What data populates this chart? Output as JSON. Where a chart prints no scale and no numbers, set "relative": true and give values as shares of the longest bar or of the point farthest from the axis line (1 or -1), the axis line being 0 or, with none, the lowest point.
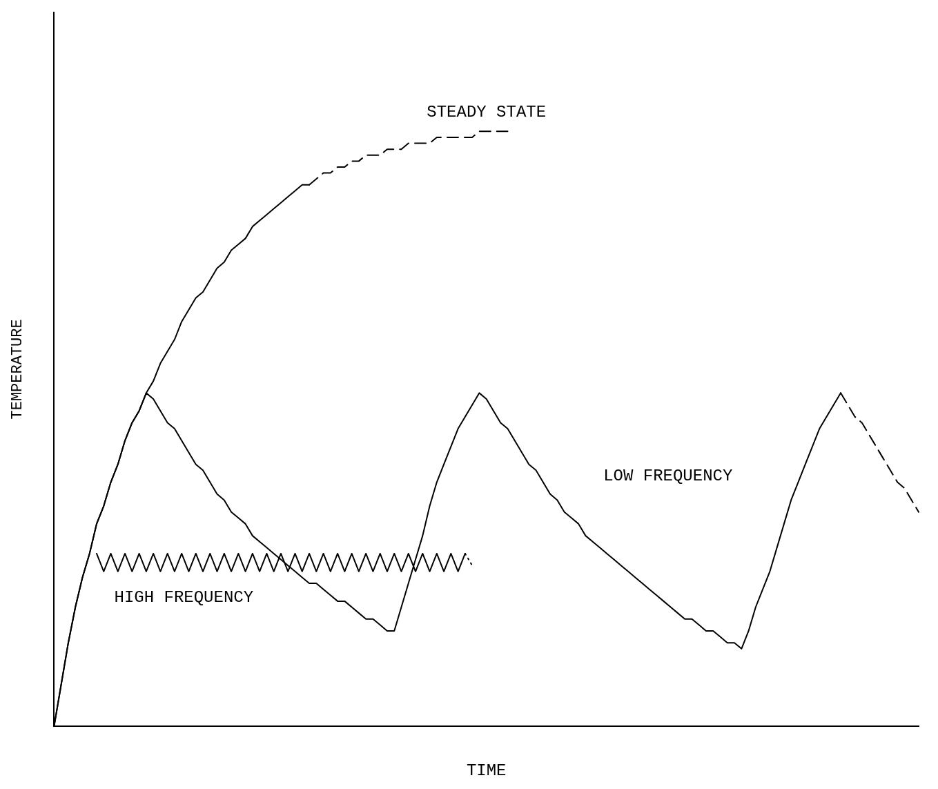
{
  "chart_data": {
    "type": "line",
    "relative": true,
    "xlabel": "TIME",
    "ylabel": "TEMPERATURE",
    "grid": false,
    "legend": false,
    "marker": "none",
    "categories": [
      null,
      null,
      null,
      null,
      null,
      null,
      null,
      null,
      null,
      null,
      null,
      null,
      null,
      null,
      null,
      null,
      null,
      null,
      null,
      null,
      null,
      null,
      null,
      null,
      null,
      null,
      null,
      null,
      null,
      null,
      null,
      null,
      null,
      null,
      null,
      null,
      null,
      null,
      null,
      null,
      null,
      null,
      null,
      null,
      null,
      null,
      null,
      null,
      null,
      null,
      null,
      null,
      null,
      null,
      null,
      null,
      null,
      null,
      null,
      null,
      null,
      null,
      null,
      null,
      null,
      null,
      null,
      null,
      null,
      null,
      null,
      null,
      null,
      null,
      null,
      null,
      null,
      null,
      null,
      null,
      null,
      null,
      null,
      null,
      null,
      null,
      null,
      null,
      null,
      null,
      null,
      null,
      null,
      null,
      null,
      null,
      null,
      null,
      null,
      null,
      null,
      null,
      null,
      null,
      null,
      null,
      null,
      null,
      null,
      null,
      null,
      null,
      null,
      null,
      null,
      null,
      null,
      null,
      null,
      null,
      null,
      null,
      null
    ],
    "series": [
      {
        "color": "#000000",
        "line_style": "solid",
        "values": [
          0,
          0.07,
          0.14,
          0.2,
          0.25,
          0.29,
          0.34,
          0.37,
          0.41,
          0.44,
          0.48,
          0.51,
          0.53,
          0.56,
          0.58,
          0.61,
          0.63,
          0.65,
          0.68,
          0.7,
          0.72,
          0.73,
          0.75,
          0.77,
          0.78,
          0.8,
          0.81,
          0.82,
          0.84,
          0.85,
          0.86,
          0.87,
          0.88,
          0.89,
          0.9,
          0.91,
          0.91,
          null,
          null,
          null,
          null,
          null,
          null,
          null,
          null,
          null,
          null,
          null,
          null,
          null,
          null,
          null,
          null,
          null,
          null,
          null,
          null,
          null,
          null,
          null,
          null,
          null,
          null,
          null,
          null,
          null,
          null,
          null,
          null,
          null,
          null,
          null,
          null,
          null,
          null,
          null,
          null,
          null,
          null,
          null,
          null,
          null,
          null,
          null,
          null,
          null,
          null,
          null,
          null,
          null,
          null,
          null,
          null,
          null,
          null,
          null,
          null,
          null,
          null,
          null,
          null,
          null,
          null,
          null,
          null,
          null,
          null,
          null,
          null,
          null,
          null,
          null,
          null,
          null,
          null,
          null,
          null,
          null,
          null,
          null,
          null,
          null,
          null
        ]
      },
      {
        "name": "STEADY STATE",
        "color": "#000000",
        "line_style": "dashed",
        "values": [
          null,
          null,
          null,
          null,
          null,
          null,
          null,
          null,
          null,
          null,
          null,
          null,
          null,
          null,
          null,
          null,
          null,
          null,
          null,
          null,
          null,
          null,
          null,
          null,
          null,
          null,
          null,
          null,
          null,
          null,
          null,
          null,
          null,
          null,
          null,
          null,
          0.91,
          0.92,
          0.93,
          0.93,
          0.94,
          0.94,
          0.95,
          0.95,
          0.96,
          0.96,
          0.96,
          0.97,
          0.97,
          0.97,
          0.98,
          0.98,
          0.98,
          0.98,
          0.99,
          0.99,
          0.99,
          0.99,
          0.99,
          0.99,
          1.0,
          1.0,
          1.0,
          1.0,
          1.0,
          null,
          null,
          null,
          null,
          null,
          null,
          null,
          null,
          null,
          null,
          null,
          null,
          null,
          null,
          null,
          null,
          null,
          null,
          null,
          null,
          null,
          null,
          null,
          null,
          null,
          null,
          null,
          null,
          null,
          null,
          null,
          null,
          null,
          null,
          null,
          null,
          null,
          null,
          null,
          null,
          null,
          null,
          null,
          null,
          null,
          null,
          null,
          null,
          null,
          null,
          null,
          null,
          null,
          null,
          null,
          null,
          null,
          null
        ]
      },
      {
        "name": "LOW FREQUENCY",
        "color": "#000000",
        "line_style": "solid",
        "values": [
          0,
          0.07,
          0.14,
          0.2,
          0.25,
          0.29,
          0.34,
          0.37,
          0.41,
          0.44,
          0.48,
          0.51,
          0.53,
          0.56,
          0.55,
          0.53,
          0.51,
          0.5,
          0.48,
          0.46,
          0.44,
          0.43,
          0.41,
          0.39,
          0.38,
          0.36,
          0.35,
          0.34,
          0.32,
          0.31,
          0.3,
          0.29,
          0.28,
          0.27,
          0.26,
          0.25,
          0.24,
          0.24,
          0.23,
          0.22,
          0.21,
          0.21,
          0.2,
          0.19,
          0.18,
          0.18,
          0.17,
          0.16,
          0.16,
          0.2,
          0.24,
          0.28,
          0.32,
          0.37,
          0.41,
          0.44,
          0.47,
          0.5,
          0.52,
          0.54,
          0.56,
          0.55,
          0.53,
          0.51,
          0.5,
          0.48,
          0.46,
          0.44,
          0.43,
          0.41,
          0.39,
          0.38,
          0.36,
          0.35,
          0.34,
          0.32,
          0.31,
          0.3,
          0.29,
          0.28,
          0.27,
          0.26,
          0.25,
          0.24,
          0.23,
          0.22,
          0.21,
          0.2,
          0.19,
          0.18,
          0.18,
          0.17,
          0.16,
          0.16,
          0.15,
          0.14,
          0.14,
          0.13,
          0.16,
          0.2,
          0.23,
          0.26,
          0.3,
          0.34,
          0.38,
          0.41,
          0.44,
          0.47,
          0.5,
          0.52,
          0.54,
          0.56,
          null,
          null,
          null,
          null,
          null,
          null,
          null,
          null,
          null,
          null,
          null
        ]
      },
      {
        "color": "#000000",
        "line_style": "dashed",
        "values": [
          null,
          null,
          null,
          null,
          null,
          null,
          null,
          null,
          null,
          null,
          null,
          null,
          null,
          null,
          null,
          null,
          null,
          null,
          null,
          null,
          null,
          null,
          null,
          null,
          null,
          null,
          null,
          null,
          null,
          null,
          null,
          null,
          null,
          null,
          null,
          null,
          null,
          null,
          null,
          null,
          null,
          null,
          null,
          null,
          null,
          null,
          null,
          null,
          null,
          null,
          null,
          null,
          null,
          null,
          null,
          null,
          null,
          null,
          null,
          null,
          null,
          null,
          null,
          null,
          null,
          null,
          null,
          null,
          null,
          null,
          null,
          null,
          null,
          null,
          null,
          null,
          null,
          null,
          null,
          null,
          null,
          null,
          null,
          null,
          null,
          null,
          null,
          null,
          null,
          null,
          null,
          null,
          null,
          null,
          null,
          null,
          null,
          null,
          null,
          null,
          null,
          null,
          null,
          null,
          null,
          null,
          null,
          null,
          null,
          null,
          null,
          0.56,
          0.54,
          0.52,
          0.51,
          0.49,
          0.47,
          0.45,
          0.43,
          0.41,
          0.4,
          0.38,
          0.36
        ]
      },
      {
        "name": "HIGH FREQUENCY",
        "color": "#000000",
        "line_style": "solid",
        "values": [
          null,
          null,
          null,
          null,
          null,
          null,
          0.29,
          0.26,
          0.29,
          0.26,
          0.29,
          0.26,
          0.29,
          0.26,
          0.29,
          0.26,
          0.29,
          0.26,
          0.29,
          0.26,
          0.29,
          0.26,
          0.29,
          0.26,
          0.29,
          0.26,
          0.29,
          0.26,
          0.29,
          0.26,
          0.29,
          0.26,
          0.29,
          0.26,
          0.29,
          0.26,
          0.29,
          0.26,
          0.29,
          0.26,
          0.29,
          0.26,
          0.29,
          0.26,
          0.29,
          0.26,
          0.29,
          0.26,
          0.29,
          0.26,
          0.29,
          0.26,
          0.29,
          0.26,
          0.29,
          0.26,
          0.29,
          0.26,
          0.29,
          null,
          null,
          null,
          null,
          null,
          null,
          null,
          null,
          null,
          null,
          null,
          null,
          null,
          null,
          null,
          null,
          null,
          null,
          null,
          null,
          null,
          null,
          null,
          null,
          null,
          null,
          null,
          null,
          null,
          null,
          null,
          null,
          null,
          null,
          null,
          null,
          null,
          null,
          null,
          null,
          null,
          null,
          null,
          null,
          null,
          null,
          null,
          null,
          null,
          null,
          null,
          null,
          null,
          null,
          null,
          null,
          null,
          null,
          null,
          null,
          null,
          null,
          null,
          null
        ]
      },
      {
        "color": "#000000",
        "line_style": "dotted",
        "values": [
          null,
          null,
          null,
          null,
          null,
          null,
          null,
          null,
          null,
          null,
          null,
          null,
          null,
          null,
          null,
          null,
          null,
          null,
          null,
          null,
          null,
          null,
          null,
          null,
          null,
          null,
          null,
          null,
          null,
          null,
          null,
          null,
          null,
          null,
          null,
          null,
          null,
          null,
          null,
          null,
          null,
          null,
          null,
          null,
          null,
          null,
          null,
          null,
          null,
          null,
          null,
          null,
          null,
          null,
          null,
          null,
          null,
          null,
          0.29,
          0.27,
          null,
          null,
          null,
          null,
          null,
          null,
          null,
          null,
          null,
          null,
          null,
          null,
          null,
          null,
          null,
          null,
          null,
          null,
          null,
          null,
          null,
          null,
          null,
          null,
          null,
          null,
          null,
          null,
          null,
          null,
          null,
          null,
          null,
          null,
          null,
          null,
          null,
          null,
          null,
          null,
          null,
          null,
          null,
          null,
          null,
          null,
          null,
          null,
          null,
          null,
          null,
          null,
          null,
          null,
          null,
          null,
          null,
          null,
          null,
          null,
          null,
          null,
          null
        ]
      }
    ]
  }
}
